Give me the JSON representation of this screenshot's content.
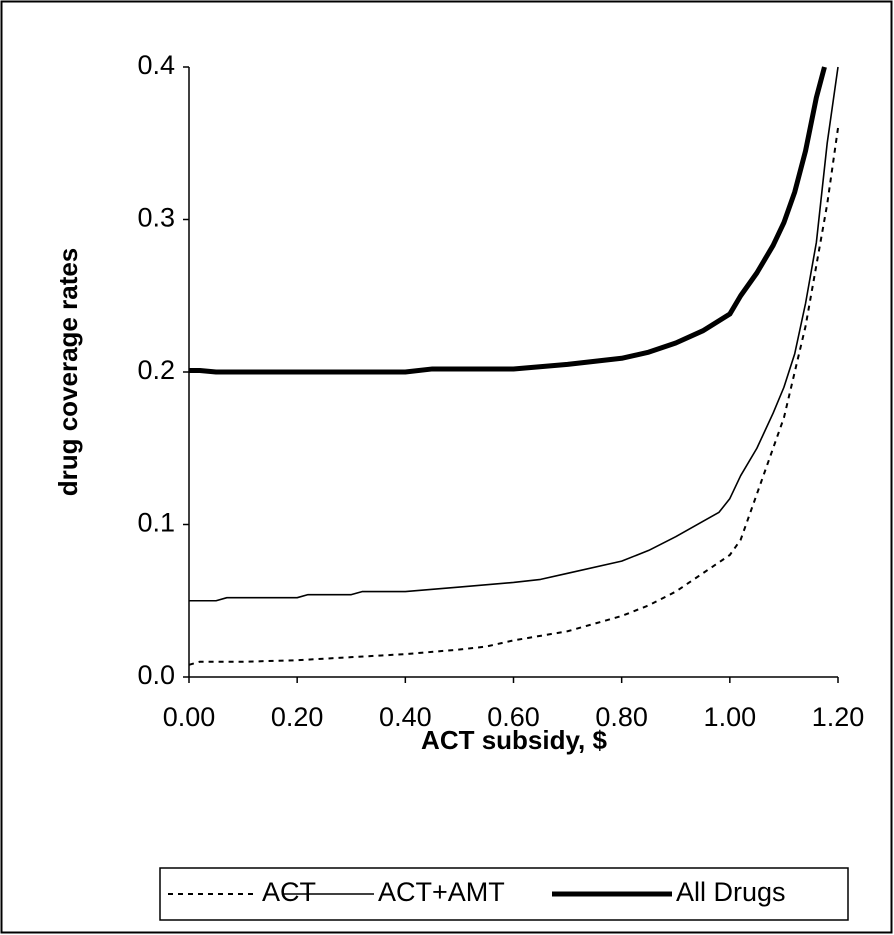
{
  "chart_data": {
    "type": "line",
    "x_label": "ACT subsidy, $",
    "y_label": "drug coverage rates",
    "xlim": [
      0,
      1.2
    ],
    "xticks": [
      {
        "value": 0,
        "label": "0.00"
      },
      {
        "value": 0.2,
        "label": "0.20"
      },
      {
        "value": 0.4,
        "label": "0.40"
      },
      {
        "value": 0.6,
        "label": "0.60"
      },
      {
        "value": 0.8,
        "label": "0.80"
      },
      {
        "value": 1.0,
        "label": "1.00"
      },
      {
        "value": 1.2,
        "label": "1.20"
      }
    ],
    "ylim": [
      0,
      0.4
    ],
    "yticks": [
      {
        "value": 0,
        "label": "0.0"
      },
      0.1,
      0.2,
      0.3,
      0.4
    ],
    "legend": "bottom",
    "series": [
      {
        "name": "ACT",
        "color": "#000000",
        "width": 2,
        "dash": "5,5",
        "x": [
          0,
          0.02,
          0.1,
          0.2,
          0.3,
          0.4,
          0.5,
          0.55,
          0.6,
          0.7,
          0.8,
          0.85,
          0.9,
          0.95,
          1.0,
          1.02,
          1.05,
          1.08,
          1.1,
          1.12,
          1.14,
          1.16,
          1.18,
          1.2
        ],
        "values": [
          0.008,
          0.01,
          0.01,
          0.011,
          0.013,
          0.015,
          0.018,
          0.02,
          0.024,
          0.03,
          0.04,
          0.047,
          0.056,
          0.068,
          0.08,
          0.09,
          0.12,
          0.15,
          0.17,
          0.2,
          0.23,
          0.27,
          0.31,
          0.36
        ]
      },
      {
        "name": "ACT+AMT",
        "color": "#000000",
        "width": 1.6,
        "dash": "none",
        "x": [
          0,
          0.05,
          0.07,
          0.2,
          0.22,
          0.3,
          0.32,
          0.4,
          0.5,
          0.6,
          0.65,
          0.7,
          0.8,
          0.85,
          0.9,
          0.95,
          0.98,
          1.0,
          1.02,
          1.05,
          1.08,
          1.1,
          1.12,
          1.14,
          1.16,
          1.18,
          1.2
        ],
        "values": [
          0.05,
          0.05,
          0.052,
          0.052,
          0.054,
          0.054,
          0.056,
          0.056,
          0.059,
          0.062,
          0.064,
          0.068,
          0.076,
          0.083,
          0.092,
          0.102,
          0.108,
          0.117,
          0.132,
          0.15,
          0.173,
          0.19,
          0.212,
          0.245,
          0.285,
          0.35,
          0.4
        ]
      },
      {
        "name": "All Drugs",
        "color": "#000000",
        "width": 5,
        "dash": "none",
        "x": [
          0,
          0.02,
          0.05,
          0.1,
          0.2,
          0.3,
          0.4,
          0.45,
          0.6,
          0.7,
          0.8,
          0.85,
          0.9,
          0.95,
          1.0,
          1.02,
          1.05,
          1.08,
          1.1,
          1.12,
          1.14,
          1.16,
          1.175
        ],
        "values": [
          0.201,
          0.201,
          0.2,
          0.2,
          0.2,
          0.2,
          0.2,
          0.202,
          0.202,
          0.205,
          0.209,
          0.213,
          0.219,
          0.227,
          0.238,
          0.25,
          0.265,
          0.283,
          0.298,
          0.318,
          0.345,
          0.38,
          0.4
        ]
      }
    ]
  }
}
